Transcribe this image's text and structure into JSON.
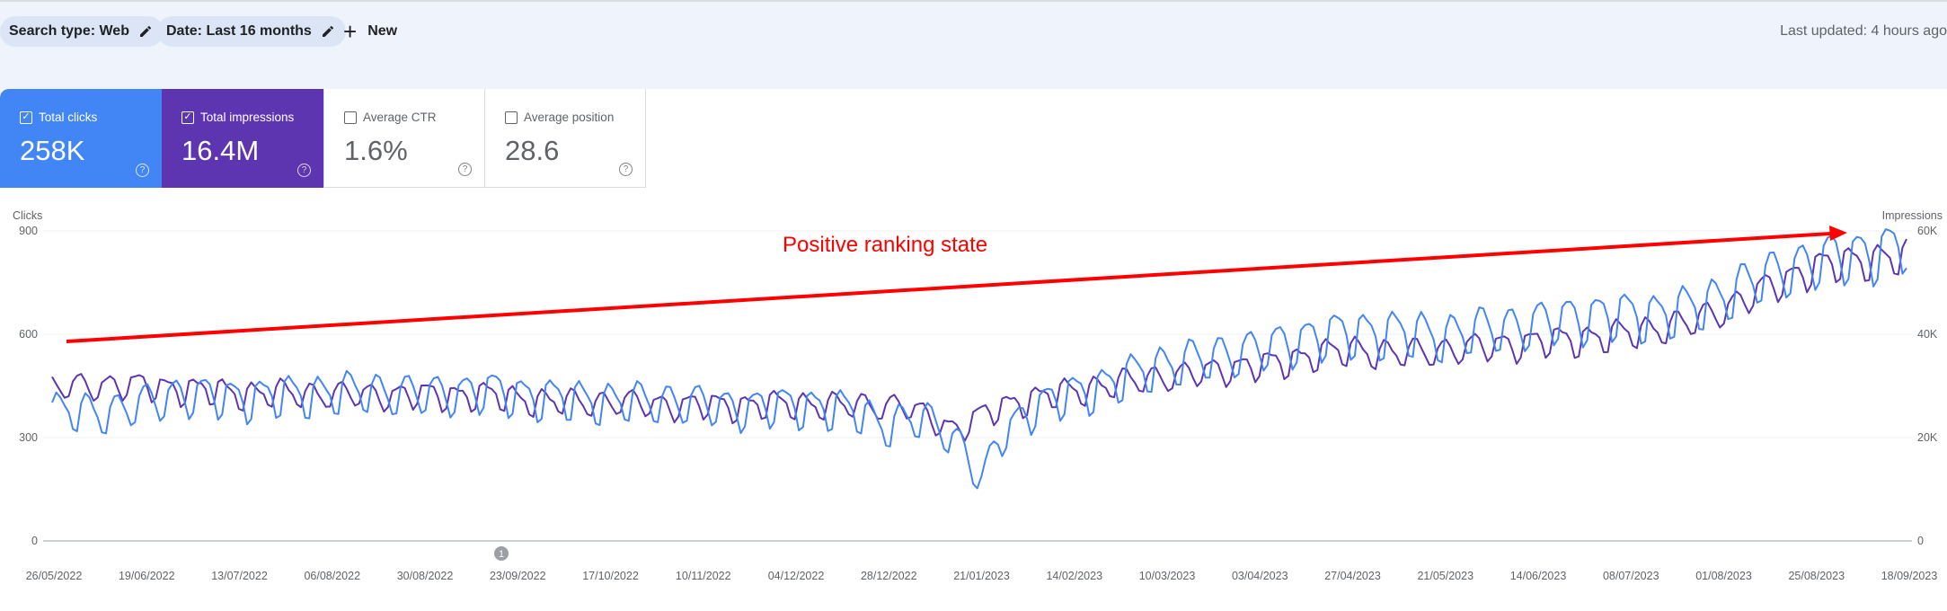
{
  "toolbar": {
    "search_type_chip": "Search type: Web",
    "date_chip": "Date: Last 16 months",
    "new_label": "New",
    "last_updated": "Last updated: 4 hours ago"
  },
  "metrics": [
    {
      "label": "Total clicks",
      "value": "258K",
      "checked": true
    },
    {
      "label": "Total impressions",
      "value": "16.4M",
      "checked": true
    },
    {
      "label": "Average CTR",
      "value": "1.6%",
      "checked": false
    },
    {
      "label": "Average position",
      "value": "28.6",
      "checked": false
    }
  ],
  "annotation": {
    "text": "Positive ranking state",
    "color": "#ff0000"
  },
  "annotation_marker": "1",
  "colors": {
    "clicks": "#4285f4",
    "impressions": "#5e35b1",
    "arrow": "#ff0000"
  },
  "chart_data": {
    "type": "line",
    "left_axis_label": "Clicks",
    "right_axis_label": "Impressions",
    "left_ticks": [
      "0",
      "300",
      "600",
      "900"
    ],
    "right_ticks": [
      "0",
      "20K",
      "40K",
      "60K"
    ],
    "ylim_left": [
      0,
      900
    ],
    "ylim_right": [
      0,
      60000
    ],
    "x_ticks": [
      "26/05/2022",
      "19/06/2022",
      "13/07/2022",
      "06/08/2022",
      "30/08/2022",
      "23/09/2022",
      "17/10/2022",
      "10/11/2022",
      "04/12/2022",
      "28/12/2022",
      "21/01/2023",
      "14/02/2023",
      "10/03/2023",
      "03/04/2023",
      "27/04/2023",
      "21/05/2023",
      "14/06/2023",
      "08/07/2023",
      "01/08/2023",
      "25/08/2023",
      "18/09/2023"
    ],
    "grid": true,
    "series": [
      {
        "name": "Clicks",
        "axis": "left",
        "anchors": [
          [
            0,
            370
          ],
          [
            15,
            370
          ],
          [
            30,
            420
          ],
          [
            45,
            410
          ],
          [
            60,
            420
          ],
          [
            75,
            430
          ],
          [
            90,
            420
          ],
          [
            105,
            430
          ],
          [
            120,
            410
          ],
          [
            135,
            400
          ],
          [
            150,
            400
          ],
          [
            165,
            380
          ],
          [
            180,
            390
          ],
          [
            195,
            370
          ],
          [
            200,
            330
          ],
          [
            210,
            350
          ],
          [
            215,
            320
          ],
          [
            220,
            260
          ],
          [
            224,
            160
          ],
          [
            228,
            290
          ],
          [
            235,
            370
          ],
          [
            245,
            420
          ],
          [
            255,
            450
          ],
          [
            265,
            500
          ],
          [
            275,
            520
          ],
          [
            285,
            540
          ],
          [
            295,
            560
          ],
          [
            305,
            590
          ],
          [
            315,
            600
          ],
          [
            325,
            600
          ],
          [
            335,
            590
          ],
          [
            345,
            610
          ],
          [
            355,
            620
          ],
          [
            365,
            640
          ],
          [
            375,
            650
          ],
          [
            385,
            650
          ],
          [
            395,
            670
          ],
          [
            400,
            690
          ],
          [
            408,
            740
          ],
          [
            420,
            790
          ],
          [
            430,
            820
          ],
          [
            440,
            830
          ],
          [
            447,
            860
          ]
        ]
      },
      {
        "name": "Impressions",
        "axis": "left",
        "anchors": [
          [
            0,
            440
          ],
          [
            15,
            450
          ],
          [
            30,
            440
          ],
          [
            45,
            425
          ],
          [
            60,
            425
          ],
          [
            75,
            420
          ],
          [
            90,
            420
          ],
          [
            105,
            420
          ],
          [
            120,
            400
          ],
          [
            135,
            400
          ],
          [
            150,
            390
          ],
          [
            165,
            390
          ],
          [
            180,
            395
          ],
          [
            190,
            390
          ],
          [
            205,
            390
          ],
          [
            212,
            350
          ],
          [
            218,
            320
          ],
          [
            224,
            360
          ],
          [
            232,
            400
          ],
          [
            245,
            430
          ],
          [
            255,
            450
          ],
          [
            265,
            470
          ],
          [
            275,
            480
          ],
          [
            285,
            500
          ],
          [
            295,
            510
          ],
          [
            305,
            540
          ],
          [
            315,
            550
          ],
          [
            325,
            540
          ],
          [
            335,
            550
          ],
          [
            345,
            560
          ],
          [
            355,
            570
          ],
          [
            365,
            580
          ],
          [
            375,
            590
          ],
          [
            385,
            610
          ],
          [
            395,
            630
          ],
          [
            405,
            680
          ],
          [
            415,
            740
          ],
          [
            425,
            790
          ],
          [
            435,
            810
          ],
          [
            447,
            820
          ]
        ]
      }
    ]
  }
}
